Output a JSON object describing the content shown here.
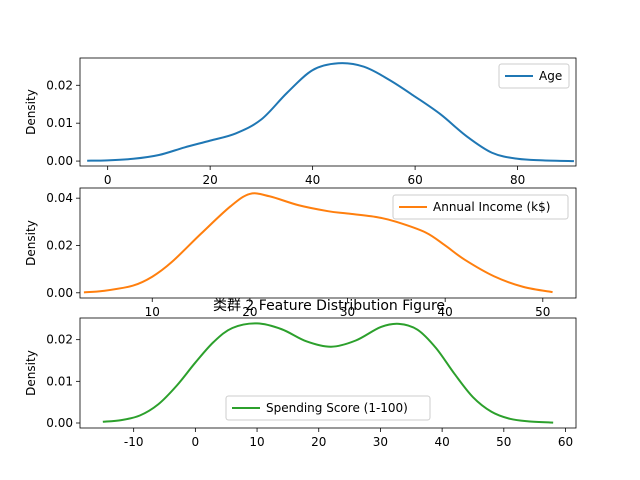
{
  "figure": {
    "title": "类群 2 Feature Distribution Figure"
  },
  "chart_data": [
    {
      "type": "line",
      "subtype": "kde",
      "ylabel": "Density",
      "xlim": [
        -5.4,
        91.4
      ],
      "ylim": [
        -0.0013,
        0.0272
      ],
      "xticks": [
        0,
        20,
        40,
        60,
        80
      ],
      "yticks": [
        0.0,
        0.01,
        0.02
      ],
      "ytick_labels": [
        "0.00",
        "0.01",
        "0.02"
      ],
      "legend_position": "upper-right",
      "grid": false,
      "series": [
        {
          "name": "Age",
          "color": "#1f77b4",
          "x": [
            -4,
            0,
            5,
            10,
            15,
            20,
            25,
            30,
            35,
            40,
            45,
            50,
            55,
            60,
            65,
            70,
            75,
            80,
            85,
            91
          ],
          "y": [
            0.0001,
            0.0002,
            0.0006,
            0.0016,
            0.0036,
            0.0054,
            0.0073,
            0.011,
            0.018,
            0.024,
            0.0258,
            0.0249,
            0.0214,
            0.017,
            0.0123,
            0.0066,
            0.0022,
            0.0006,
            0.0002,
            0.0
          ]
        }
      ]
    },
    {
      "type": "line",
      "subtype": "kde",
      "ylabel": "Density",
      "xlim": [
        2.6,
        53.4
      ],
      "ylim": [
        -0.0022,
        0.0443
      ],
      "xticks": [
        10,
        20,
        30,
        40,
        50
      ],
      "yticks": [
        0.0,
        0.02,
        0.04
      ],
      "ytick_labels": [
        "0.00",
        "0.02",
        "0.04"
      ],
      "legend_position": "upper-right",
      "grid": false,
      "series": [
        {
          "name": "Annual Income (k$)",
          "color": "#ff7f0e",
          "x": [
            3,
            5,
            8,
            10,
            12,
            15,
            18,
            20,
            22,
            25,
            28,
            30,
            33,
            35,
            38,
            40,
            42,
            45,
            48,
            51
          ],
          "y": [
            0.0002,
            0.0008,
            0.003,
            0.0068,
            0.013,
            0.025,
            0.0365,
            0.0418,
            0.0408,
            0.037,
            0.0345,
            0.0335,
            0.032,
            0.03,
            0.0255,
            0.02,
            0.014,
            0.007,
            0.0025,
            0.0003
          ]
        }
      ]
    },
    {
      "type": "line",
      "subtype": "kde",
      "ylabel": "Density",
      "xlim": [
        -18.7,
        61.7
      ],
      "ylim": [
        -0.0012,
        0.0252
      ],
      "xticks": [
        -10,
        0,
        10,
        20,
        30,
        40,
        50,
        60
      ],
      "yticks": [
        0.0,
        0.01,
        0.02
      ],
      "ytick_labels": [
        "0.00",
        "0.01",
        "0.02"
      ],
      "legend_position": "lower-center",
      "grid": false,
      "series": [
        {
          "name": "Spending Score (1-100)",
          "color": "#2ca02c",
          "x": [
            -15,
            -12,
            -9,
            -6,
            -3,
            0,
            3,
            6,
            10,
            14,
            18,
            22,
            26,
            30,
            33,
            36,
            39,
            42,
            45,
            48,
            51,
            54,
            58
          ],
          "y": [
            0.0003,
            0.0007,
            0.0018,
            0.0045,
            0.009,
            0.0145,
            0.0195,
            0.0228,
            0.0239,
            0.0225,
            0.0196,
            0.0183,
            0.0198,
            0.023,
            0.0238,
            0.0224,
            0.018,
            0.0118,
            0.0062,
            0.0027,
            0.001,
            0.0004,
            0.0001
          ]
        }
      ]
    }
  ]
}
